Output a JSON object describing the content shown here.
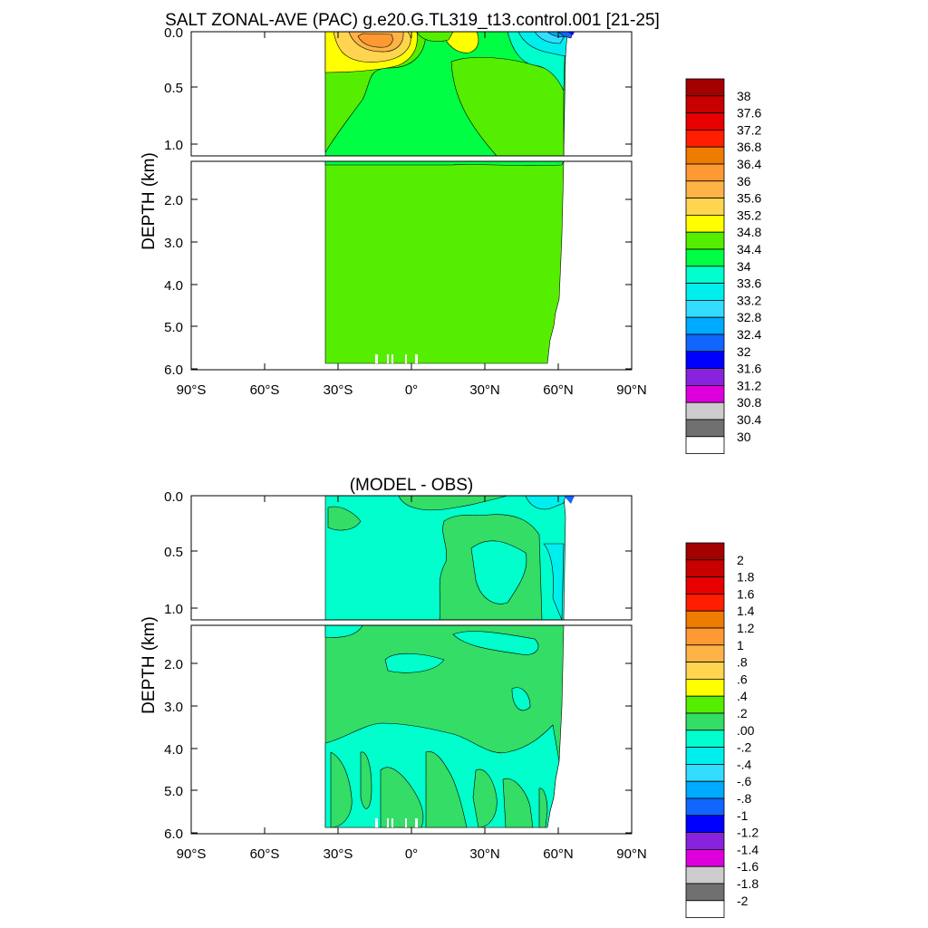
{
  "chart_data": [
    {
      "type": "heatmap",
      "title": "SALT ZONAL-AVE (PAC) g.e20.G.TL319_t13.control.001 [21-25]",
      "ylabel": "DEPTH (km)",
      "xlabel": "",
      "x_ticks": [
        "90°S",
        "60°S",
        "30°S",
        "0°",
        "30°N",
        "60°N",
        "90°N"
      ],
      "y_ticks_upper": [
        "0.0",
        "0.5",
        "1.0"
      ],
      "y_ticks_lower": [
        "2.0",
        "3.0",
        "4.0",
        "5.0",
        "6.0"
      ],
      "xlim": [
        -90,
        90
      ],
      "ylim": [
        6.0,
        0.0
      ],
      "colorbar_levels": [
        "38",
        "37.6",
        "37.2",
        "36.8",
        "36.4",
        "36",
        "35.6",
        "35.2",
        "34.8",
        "34.4",
        "34",
        "33.6",
        "33.2",
        "32.8",
        "32.4",
        "32",
        "31.6",
        "31.2",
        "30.8",
        "30.4",
        "30"
      ],
      "colorbar_colors": [
        "#a50000",
        "#c80000",
        "#e60000",
        "#ff1e00",
        "#ee7c00",
        "#ff9933",
        "#ffb347",
        "#ffd54f",
        "#ffff00",
        "#55ee00",
        "#00ff44",
        "#00ffcc",
        "#00eeee",
        "#33ddff",
        "#00aaff",
        "#1166ff",
        "#0000ff",
        "#8822dd",
        "#dd00dd",
        "#cccccc",
        "#707070",
        "#ffffff"
      ]
    },
    {
      "type": "heatmap",
      "title": "(MODEL - OBS)",
      "ylabel": "DEPTH (km)",
      "xlabel": "",
      "x_ticks": [
        "90°S",
        "60°S",
        "30°S",
        "0°",
        "30°N",
        "60°N",
        "90°N"
      ],
      "y_ticks_upper": [
        "0.0",
        "0.5",
        "1.0"
      ],
      "y_ticks_lower": [
        "2.0",
        "3.0",
        "4.0",
        "5.0",
        "6.0"
      ],
      "xlim": [
        -90,
        90
      ],
      "ylim": [
        6.0,
        0.0
      ],
      "colorbar_levels": [
        "2",
        "1.8",
        "1.6",
        "1.4",
        "1.2",
        "1",
        ".8",
        ".6",
        ".4",
        ".2",
        ".00",
        "-.2",
        "-.4",
        "-.6",
        "-.8",
        "-1",
        "-1.2",
        "-1.4",
        "-1.6",
        "-1.8",
        "-2"
      ],
      "colorbar_colors": [
        "#a50000",
        "#c80000",
        "#e60000",
        "#ff1e00",
        "#ee7c00",
        "#ff9933",
        "#ffb347",
        "#ffd54f",
        "#ffff00",
        "#55ee00",
        "#33dd66",
        "#00ffcc",
        "#00eeee",
        "#33ddff",
        "#00aaff",
        "#1166ff",
        "#0000ff",
        "#8822dd",
        "#dd00dd",
        "#cccccc",
        "#707070",
        "#ffffff"
      ]
    }
  ]
}
